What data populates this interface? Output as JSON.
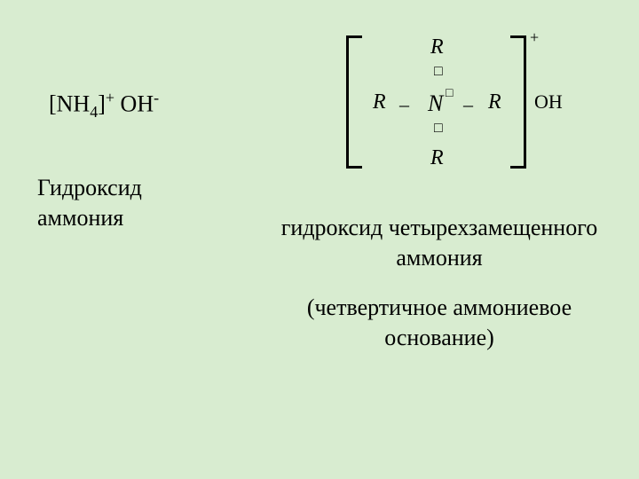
{
  "slide": {
    "background_color": "#d8ecd0",
    "text_color": "#000000",
    "font_family": "Times New Roman"
  },
  "formula_left": {
    "part1": "[NH",
    "sub": "4",
    "part2": "]",
    "sup1": "+",
    "part3": " OH",
    "sup2": "-"
  },
  "label_left": {
    "line1": "Гидроксид",
    "line2": "аммония"
  },
  "diagram": {
    "r_top": "R",
    "r_left": "R",
    "r_right": "R",
    "r_bottom": "R",
    "n_center": "N",
    "n_super": "□",
    "sq_top": "□",
    "sq_bottom": "□",
    "dash_left": "–",
    "dash_right": "–",
    "plus_outer": "+",
    "oh": "OH",
    "bracket_color": "#000000",
    "bracket_width": 3
  },
  "label_right": {
    "line1": "гидроксид четырехзамещенного",
    "line2": "аммония"
  },
  "label_right2": {
    "line1": "(четвертичное аммониевое",
    "line2": "основание)"
  }
}
